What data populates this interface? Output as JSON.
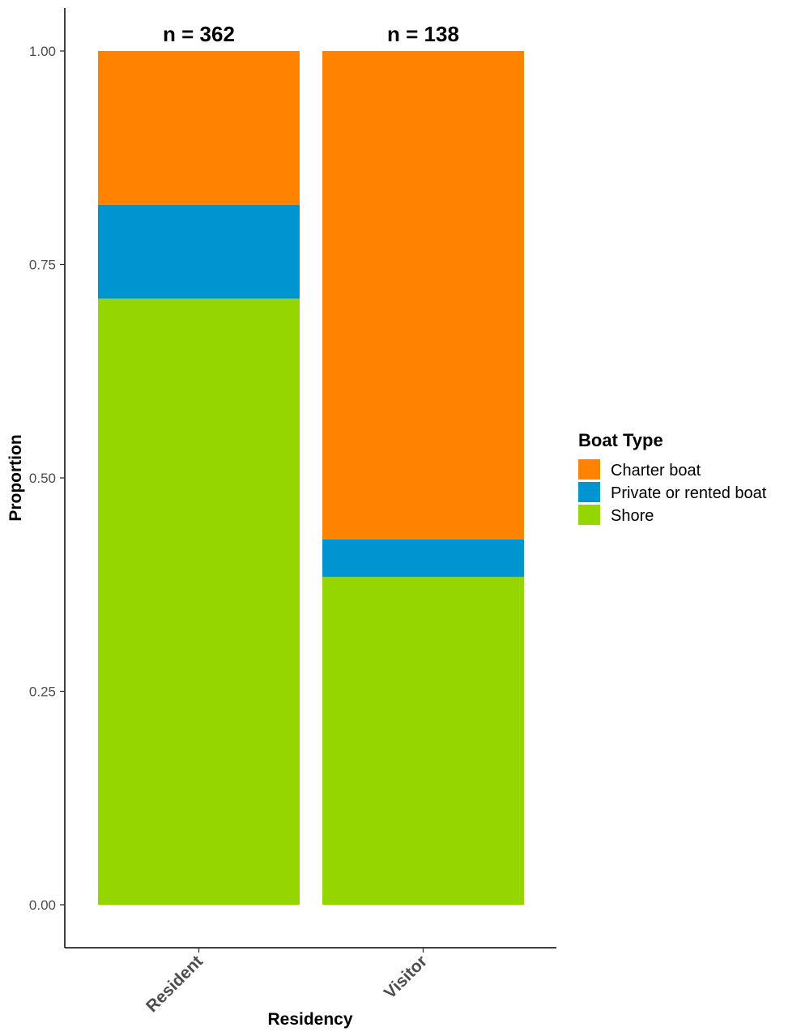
{
  "chart_data": {
    "type": "bar",
    "stacked": true,
    "categories": [
      "Resident",
      "Visitor"
    ],
    "annotations": [
      "n = 362",
      "n = 138"
    ],
    "series": [
      {
        "name": "Shore",
        "color": "#95d600",
        "values": [
          0.71,
          0.384
        ]
      },
      {
        "name": "Private or rented boat",
        "color": "#0095d0",
        "values": [
          0.11,
          0.044
        ]
      },
      {
        "name": "Charter boat",
        "color": "#ff8200",
        "values": [
          0.18,
          0.572
        ]
      }
    ],
    "xlabel": "Residency",
    "ylabel": "Proportion",
    "ylim": [
      0,
      1
    ],
    "yticks": [
      "0.00",
      "0.25",
      "0.50",
      "0.75",
      "1.00"
    ],
    "legend": {
      "title": "Boat Type",
      "position": "right",
      "entries": [
        {
          "label": "Charter boat",
          "color": "#ff8200"
        },
        {
          "label": "Private or rented boat",
          "color": "#0095d0"
        },
        {
          "label": "Shore",
          "color": "#95d600"
        }
      ]
    },
    "grid": false
  }
}
